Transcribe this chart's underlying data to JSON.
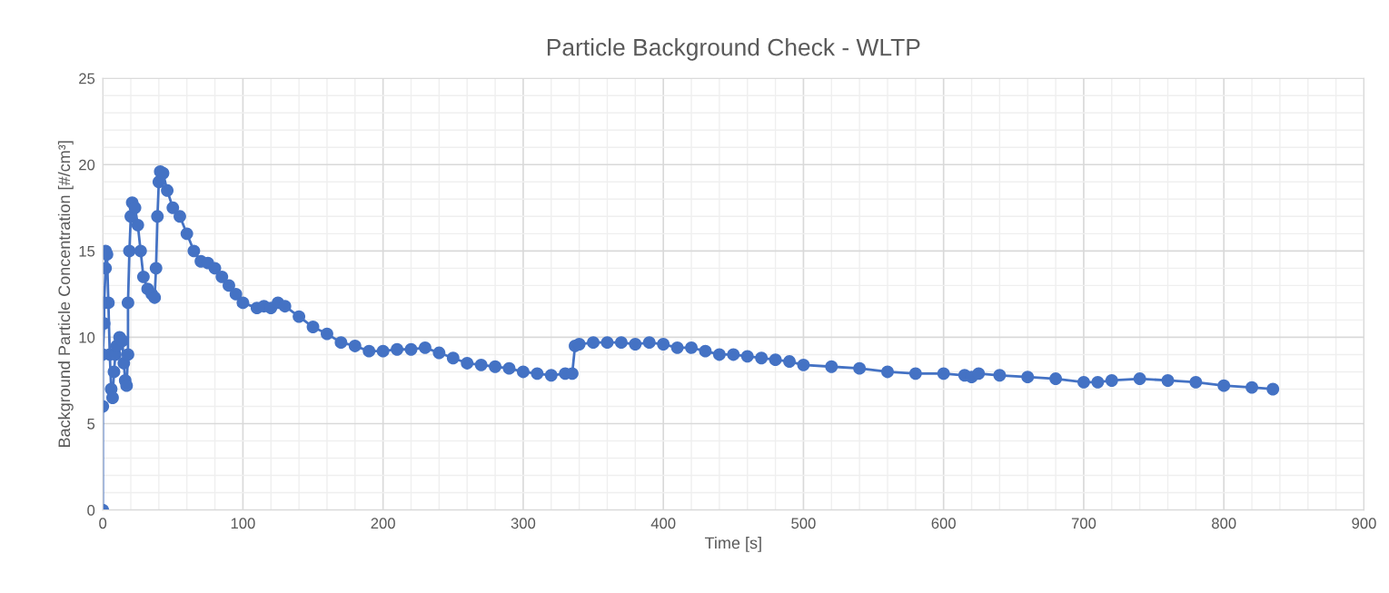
{
  "chart_data": {
    "type": "line",
    "title": "Particle Background Check - WLTP",
    "xlabel": "Time [s]",
    "ylabel": "Background Particle Concentration [#/cm³]",
    "xlim": [
      0,
      900
    ],
    "ylim": [
      0,
      25
    ],
    "xticks": [
      0,
      {
        "value": 20,
        "label": null
      },
      {
        "value": 40,
        "label": null
      },
      {
        "value": 60,
        "label": null
      },
      {
        "value": 80,
        "label": null
      },
      100,
      {
        "value": 120,
        "label": null
      },
      {
        "value": 140,
        "label": null
      },
      {
        "value": 160,
        "label": null
      },
      {
        "value": 180,
        "label": null
      },
      200,
      {
        "value": 220,
        "label": null
      },
      {
        "value": 240,
        "label": null
      },
      {
        "value": 260,
        "label": null
      },
      {
        "value": 280,
        "label": null
      },
      300,
      {
        "value": 320,
        "label": null
      },
      {
        "value": 340,
        "label": null
      },
      {
        "value": 360,
        "label": null
      },
      {
        "value": 380,
        "label": null
      },
      400,
      {
        "value": 420,
        "label": null
      },
      {
        "value": 440,
        "label": null
      },
      {
        "value": 460,
        "label": null
      },
      {
        "value": 480,
        "label": null
      },
      500,
      {
        "value": 520,
        "label": null
      },
      {
        "value": 540,
        "label": null
      },
      {
        "value": 560,
        "label": null
      },
      {
        "value": 580,
        "label": null
      },
      600,
      {
        "value": 620,
        "label": null
      },
      {
        "value": 640,
        "label": null
      },
      {
        "value": 660,
        "label": null
      },
      {
        "value": 680,
        "label": null
      },
      700,
      {
        "value": 720,
        "label": null
      },
      {
        "value": 740,
        "label": null
      },
      {
        "value": 760,
        "label": null
      },
      {
        "value": 780,
        "label": null
      },
      800,
      {
        "value": 820,
        "label": null
      },
      {
        "value": 840,
        "label": null
      },
      {
        "value": 860,
        "label": null
      },
      {
        "value": 880,
        "label": null
      },
      900
    ],
    "yticks": [
      0,
      {
        "value": 1,
        "label": null
      },
      {
        "value": 2,
        "label": null
      },
      {
        "value": 3,
        "label": null
      },
      {
        "value": 4,
        "label": null
      },
      5,
      {
        "value": 6,
        "label": null
      },
      {
        "value": 7,
        "label": null
      },
      {
        "value": 8,
        "label": null
      },
      {
        "value": 9,
        "label": null
      },
      10,
      {
        "value": 11,
        "label": null
      },
      {
        "value": 12,
        "label": null
      },
      {
        "value": 13,
        "label": null
      },
      {
        "value": 14,
        "label": null
      },
      15,
      {
        "value": 16,
        "label": null
      },
      {
        "value": 17,
        "label": null
      },
      {
        "value": 18,
        "label": null
      },
      {
        "value": 19,
        "label": null
      },
      20,
      {
        "value": 21,
        "label": null
      },
      {
        "value": 22,
        "label": null
      },
      {
        "value": 23,
        "label": null
      },
      {
        "value": 24,
        "label": null
      },
      25
    ],
    "grid": true,
    "marker": "circle",
    "line_style": "solid",
    "series": [
      {
        "color": "#4472c4",
        "x": [
          0,
          0,
          0,
          1,
          1,
          2,
          2,
          3,
          4,
          5,
          6,
          7,
          8,
          9,
          10,
          12,
          14,
          15,
          16,
          17,
          18,
          18,
          19,
          20,
          21,
          23,
          25,
          27,
          29,
          32,
          35,
          37,
          38,
          39,
          40,
          41,
          43,
          46,
          50,
          55,
          60,
          65,
          70,
          75,
          80,
          85,
          90,
          95,
          100,
          110,
          115,
          120,
          125,
          130,
          140,
          150,
          160,
          170,
          180,
          190,
          200,
          210,
          220,
          230,
          240,
          250,
          260,
          270,
          280,
          290,
          300,
          310,
          320,
          330,
          335,
          337,
          340,
          350,
          360,
          370,
          380,
          390,
          400,
          410,
          420,
          430,
          440,
          450,
          460,
          470,
          480,
          490,
          500,
          520,
          540,
          560,
          580,
          600,
          615,
          620,
          625,
          640,
          660,
          680,
          700,
          710,
          720,
          740,
          760,
          780,
          800,
          820,
          835
        ],
        "values": [
          0,
          6,
          9,
          10.8,
          12,
          14,
          15,
          14.8,
          12,
          9,
          7,
          6.5,
          8,
          9,
          9.5,
          10,
          9.8,
          8.5,
          7.5,
          7.2,
          9,
          12,
          15,
          17,
          17.8,
          17.5,
          16.5,
          15,
          13.5,
          12.8,
          12.5,
          12.3,
          14,
          17,
          19,
          19.6,
          19.5,
          18.5,
          17.5,
          17,
          16,
          15,
          14.4,
          14.3,
          14,
          13.5,
          13,
          12.5,
          12,
          11.7,
          11.8,
          11.7,
          12,
          11.8,
          11.2,
          10.6,
          10.2,
          9.7,
          9.5,
          9.2,
          9.2,
          9.3,
          9.3,
          9.4,
          9.1,
          8.8,
          8.5,
          8.4,
          8.3,
          8.2,
          8,
          7.9,
          7.8,
          7.9,
          7.9,
          9.5,
          9.6,
          9.7,
          9.7,
          9.7,
          9.6,
          9.7,
          9.6,
          9.4,
          9.4,
          9.2,
          9,
          9,
          8.9,
          8.8,
          8.7,
          8.6,
          8.4,
          8.3,
          8.2,
          8,
          7.9,
          7.9,
          7.8,
          7.7,
          7.9,
          7.8,
          7.7,
          7.6,
          7.4,
          7.4,
          7.5,
          7.6,
          7.5,
          7.4,
          7.2,
          7.1,
          7
        ]
      }
    ]
  }
}
